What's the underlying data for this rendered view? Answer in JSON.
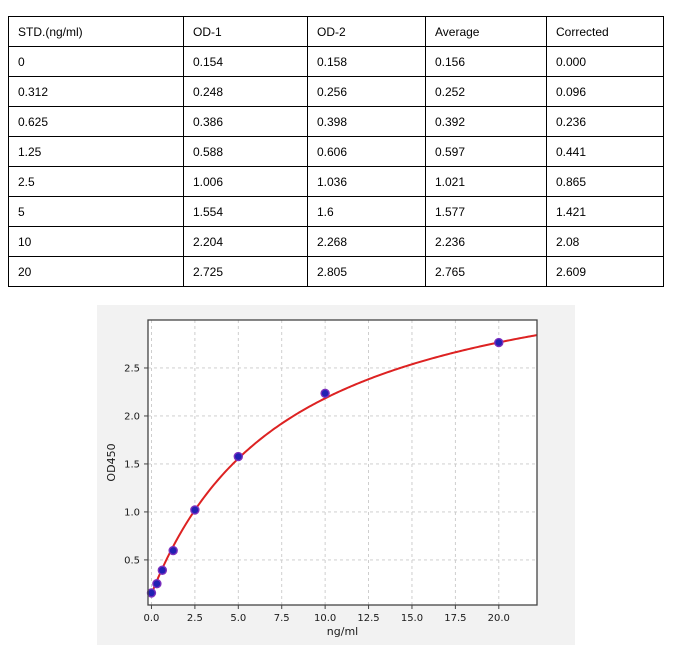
{
  "table": {
    "columns": [
      "STD.(ng/ml)",
      "OD-1",
      "OD-2",
      "Average",
      "Corrected"
    ],
    "rows": [
      [
        "0",
        "0.154",
        "0.158",
        "0.156",
        "0.000"
      ],
      [
        "0.312",
        "0.248",
        "0.256",
        "0.252",
        "0.096"
      ],
      [
        "0.625",
        "0.386",
        "0.398",
        "0.392",
        "0.236"
      ],
      [
        "1.25",
        "0.588",
        "0.606",
        "0.597",
        "0.441"
      ],
      [
        "2.5",
        "1.006",
        "1.036",
        "1.021",
        "0.865"
      ],
      [
        "5",
        "1.554",
        "1.6",
        "1.577",
        "1.421"
      ],
      [
        "10",
        "2.204",
        "2.268",
        "2.236",
        "2.08"
      ],
      [
        "20",
        "2.725",
        "2.805",
        "2.765",
        "2.609"
      ]
    ]
  },
  "chart_data": {
    "type": "scatter",
    "title": "",
    "xlabel": "ng/ml",
    "ylabel": "OD450",
    "x": [
      0,
      0.312,
      0.625,
      1.25,
      2.5,
      5,
      10,
      20
    ],
    "y": [
      0.156,
      0.252,
      0.392,
      0.597,
      1.021,
      1.577,
      2.236,
      2.765
    ],
    "series": [
      {
        "name": "standard-points",
        "type": "scatter",
        "x": [
          0,
          0.312,
          0.625,
          1.25,
          2.5,
          5,
          10,
          20
        ],
        "y": [
          0.156,
          0.252,
          0.392,
          0.597,
          1.021,
          1.577,
          2.236,
          2.765
        ]
      },
      {
        "name": "fitted-curve",
        "type": "line",
        "fit": {
          "model": "hyperbolic",
          "base": 0.145,
          "span": 3.67,
          "k": 8,
          "x_start": 0,
          "x_end": 22.2
        }
      }
    ],
    "xlim": [
      -0.2,
      22.2
    ],
    "ylim": [
      0.03,
      3.0
    ],
    "xticks": [
      0.0,
      2.5,
      5.0,
      7.5,
      10.0,
      12.5,
      15.0,
      17.5,
      20.0
    ],
    "yticks": [
      0.5,
      1.0,
      1.5,
      2.0,
      2.5
    ],
    "grid": true,
    "grid_style": "dashed",
    "legend": "none",
    "colors": {
      "curve": "#dd2222",
      "marker_fill": "#2121b3",
      "marker_edge": "#7b2fbe",
      "figure_bg": "#f2f2f2",
      "plot_bg": "#ffffff",
      "grid": "#c9c9c9",
      "axis": "#444444",
      "tick_text": "#1a1a1a"
    }
  }
}
